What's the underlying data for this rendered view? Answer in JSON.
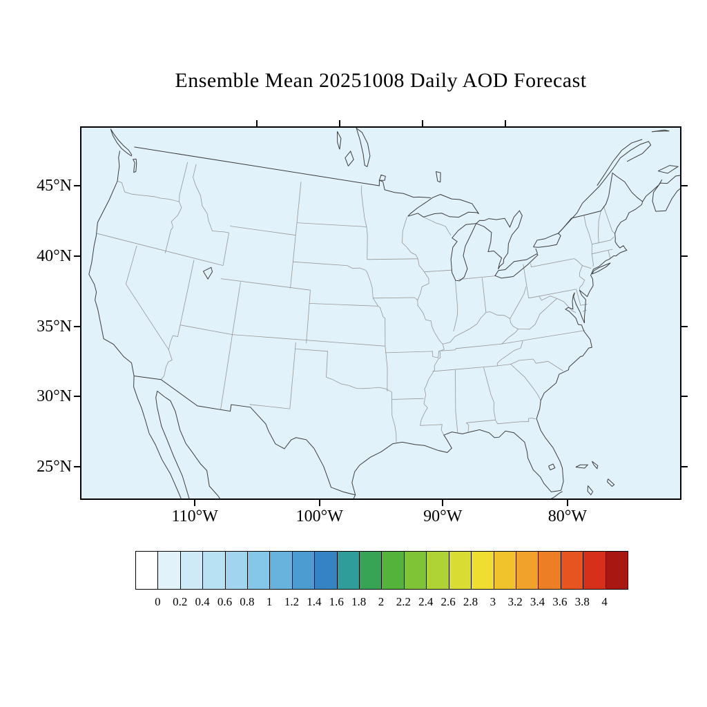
{
  "title": "Ensemble Mean 20251008 Daily AOD Forecast",
  "map": {
    "frame_color": "#000000",
    "background_color": "#ddeef8",
    "coast_color": "#3c3c3c",
    "state_border_color": "#969696"
  },
  "chart_data": {
    "type": "heatmap",
    "title": "Ensemble Mean 20251008 Daily AOD Forecast",
    "variable": "AOD",
    "x_tick_labels": [
      "110°W",
      "100°W",
      "90°W",
      "80°W"
    ],
    "y_tick_labels": [
      "45°N",
      "40°N",
      "35°N",
      "30°N",
      "25°N"
    ],
    "x_tick_lons": [
      -110,
      -100,
      -90,
      -80
    ],
    "y_tick_lats": [
      45,
      40,
      35,
      30,
      25
    ],
    "colorbar": {
      "levels": [
        0,
        0.2,
        0.4,
        0.6,
        0.8,
        1,
        1.2,
        1.4,
        1.6,
        1.8,
        2,
        2.2,
        2.4,
        2.6,
        2.8,
        3,
        3.2,
        3.4,
        3.6,
        3.8,
        4
      ],
      "level_labels": [
        "0",
        "0.2",
        "0.4",
        "0.6",
        "0.8",
        "1",
        "1.2",
        "1.4",
        "1.6",
        "1.8",
        "2",
        "2.2",
        "2.4",
        "2.6",
        "2.8",
        "3",
        "3.2",
        "3.4",
        "3.6",
        "3.8",
        "4"
      ],
      "colors": [
        "#ffffff",
        "#e2f2fa",
        "#cfeaf7",
        "#b9e1f4",
        "#a1d5ef",
        "#85c7e9",
        "#67b3de",
        "#4c9cd1",
        "#3583c2",
        "#2f9e9b",
        "#37a455",
        "#53b33a",
        "#7fc437",
        "#afd235",
        "#d9dd33",
        "#efde30",
        "#f0c22c",
        "#f1a22a",
        "#ee7e26",
        "#e85420",
        "#d6301a",
        "#a81711"
      ]
    },
    "field_summary": "AOD in the lowest bin (0 to 0.2, lightest blue shade) across the entire visible domain"
  }
}
